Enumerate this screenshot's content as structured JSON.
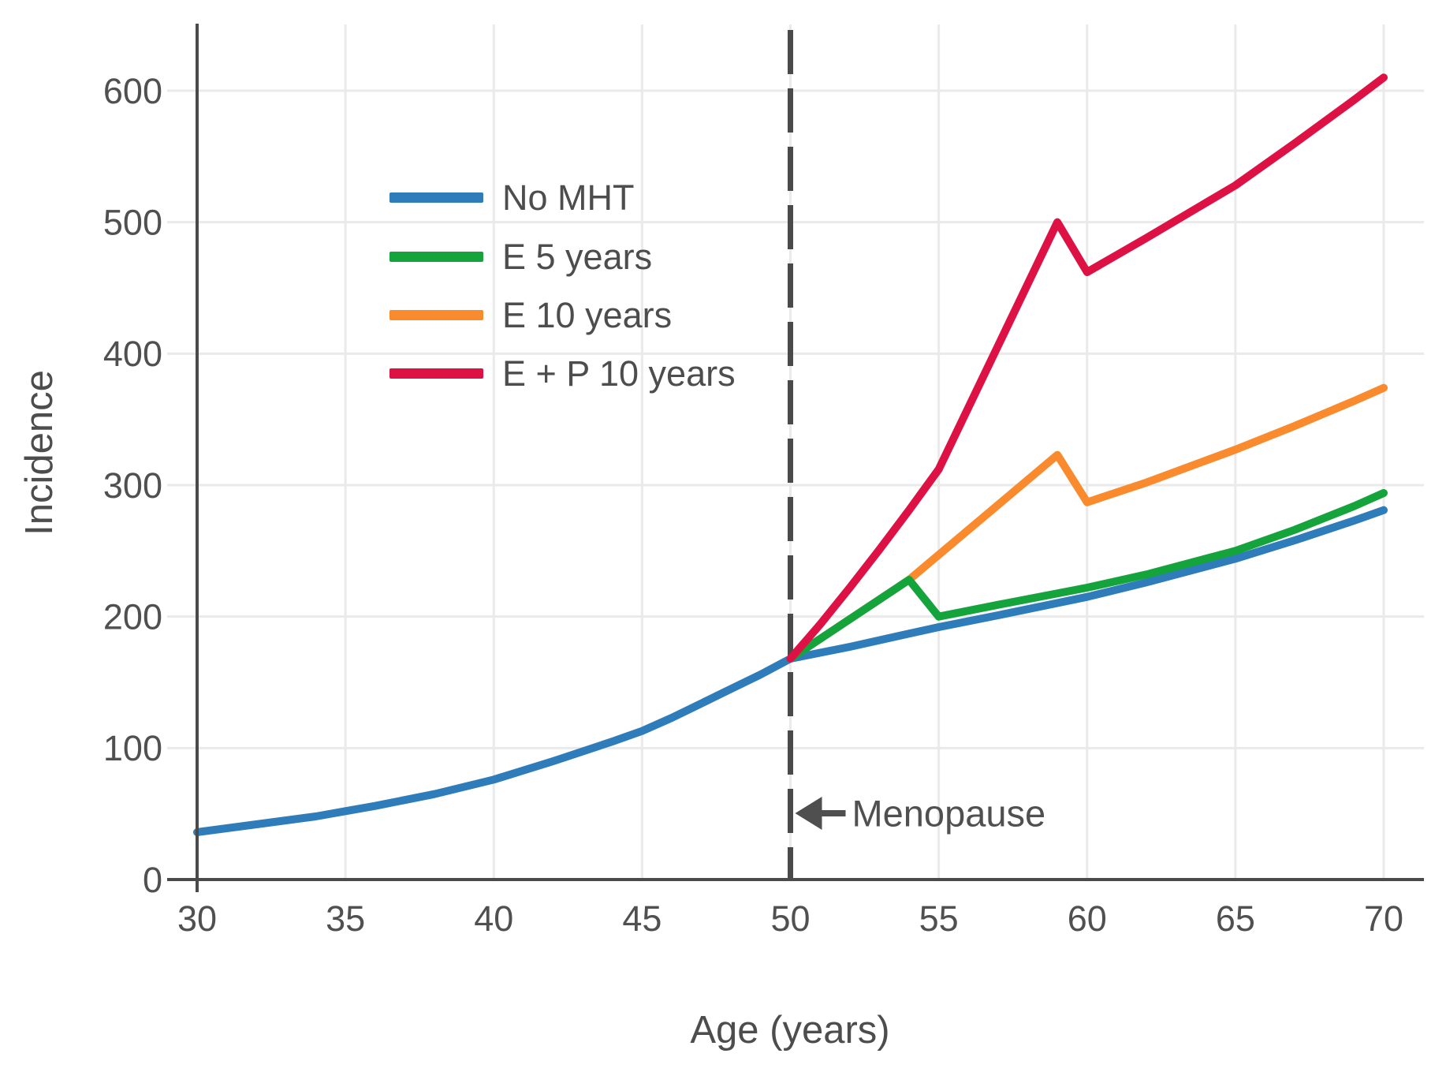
{
  "chart_data": {
    "type": "line",
    "title": "",
    "xlabel": "Age (years)",
    "ylabel": "Incidence",
    "xlim": [
      30,
      70
    ],
    "ylim": [
      0,
      650
    ],
    "x_ticks": [
      30,
      35,
      40,
      45,
      50,
      55,
      60,
      65,
      70
    ],
    "y_ticks": [
      0,
      100,
      200,
      300,
      400,
      500,
      600
    ],
    "grid": true,
    "legend_position": "upper-left-inside",
    "series": [
      {
        "name": "No MHT",
        "color": "#2E7CB9",
        "points": [
          [
            30,
            36
          ],
          [
            32,
            42
          ],
          [
            34,
            48
          ],
          [
            35,
            52
          ],
          [
            36,
            56
          ],
          [
            38,
            65
          ],
          [
            40,
            76
          ],
          [
            42,
            90
          ],
          [
            44,
            105
          ],
          [
            45,
            113
          ],
          [
            46,
            123
          ],
          [
            47,
            134
          ],
          [
            48,
            145
          ],
          [
            49,
            156
          ],
          [
            50,
            168
          ],
          [
            52,
            177
          ],
          [
            54,
            187
          ],
          [
            55,
            192
          ],
          [
            57,
            201
          ],
          [
            60,
            215
          ],
          [
            62,
            226
          ],
          [
            64,
            238
          ],
          [
            65,
            244
          ],
          [
            67,
            258
          ],
          [
            69,
            273
          ],
          [
            70,
            281
          ]
        ]
      },
      {
        "name": "E 5 years",
        "color": "#15A43C",
        "points": [
          [
            50,
            168
          ],
          [
            54,
            228
          ],
          [
            55,
            200
          ],
          [
            57,
            209
          ],
          [
            60,
            222
          ],
          [
            62,
            232
          ],
          [
            65,
            250
          ],
          [
            67,
            266
          ],
          [
            69,
            284
          ],
          [
            70,
            294
          ]
        ]
      },
      {
        "name": "E 10 years",
        "color": "#FA8A2E",
        "points": [
          [
            50,
            168
          ],
          [
            54,
            228
          ],
          [
            59,
            323
          ],
          [
            60,
            287
          ],
          [
            62,
            302
          ],
          [
            65,
            327
          ],
          [
            67,
            345
          ],
          [
            69,
            364
          ],
          [
            70,
            374
          ]
        ]
      },
      {
        "name": "E + P 10 years",
        "color": "#DE1145",
        "points": [
          [
            50,
            168
          ],
          [
            51,
            194
          ],
          [
            52,
            222
          ],
          [
            53,
            251
          ],
          [
            54,
            281
          ],
          [
            55,
            312
          ],
          [
            59,
            500
          ],
          [
            60,
            462
          ],
          [
            62,
            488
          ],
          [
            65,
            528
          ],
          [
            67,
            560
          ],
          [
            69,
            593
          ],
          [
            70,
            610
          ]
        ]
      }
    ],
    "annotations": [
      {
        "type": "vline",
        "x": 50,
        "style": "dashed",
        "color": "#4A4A4A"
      },
      {
        "type": "arrow-label",
        "text": "Menopause",
        "x": 50,
        "label_value_y": 50,
        "direction": "left",
        "color": "#4F4F4F"
      }
    ],
    "style": {
      "grid_color": "#EAEAEA",
      "axis_color": "#4A4A4A",
      "tick_label_color": "#505050",
      "series_stroke_width": 10
    },
    "legend_rows_y": [
      250,
      325,
      399,
      473
    ]
  }
}
